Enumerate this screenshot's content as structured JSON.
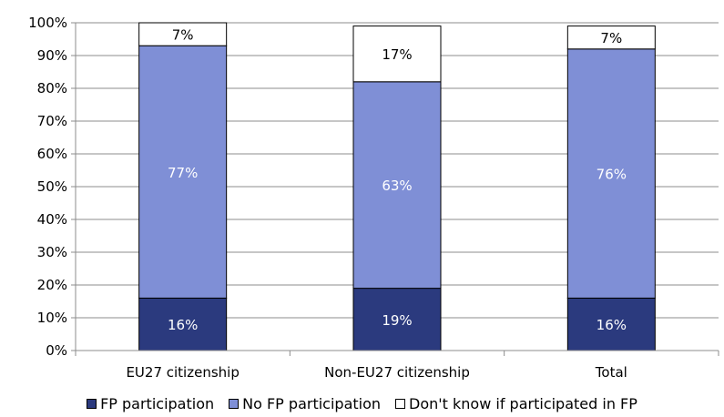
{
  "chart_data": {
    "type": "bar",
    "stacked": true,
    "title": "",
    "xlabel": "",
    "ylabel": "",
    "ylim": [
      0,
      100
    ],
    "y_ticks": [
      "0%",
      "10%",
      "20%",
      "30%",
      "40%",
      "50%",
      "60%",
      "70%",
      "80%",
      "90%",
      "100%"
    ],
    "categories": [
      "EU27 citizenship",
      "Non-EU27 citizenship",
      "Total"
    ],
    "series": [
      {
        "name": "FP participation",
        "values": [
          16,
          19,
          16
        ],
        "labels": [
          "16%",
          "19%",
          "16%"
        ],
        "color": "#2b3a7e",
        "label_color": "#ffffff"
      },
      {
        "name": "No FP participation",
        "values": [
          77,
          63,
          76
        ],
        "labels": [
          "77%",
          "63%",
          "76%"
        ],
        "color": "#7f8fd6",
        "label_color": "#ffffff"
      },
      {
        "name": "Don't know if participated in FP",
        "values": [
          7,
          17,
          7
        ],
        "labels": [
          "7%",
          "17%",
          "7%"
        ],
        "color": "#ffffff",
        "label_color": "#000000"
      }
    ],
    "grid": true,
    "legend_position": "bottom"
  }
}
